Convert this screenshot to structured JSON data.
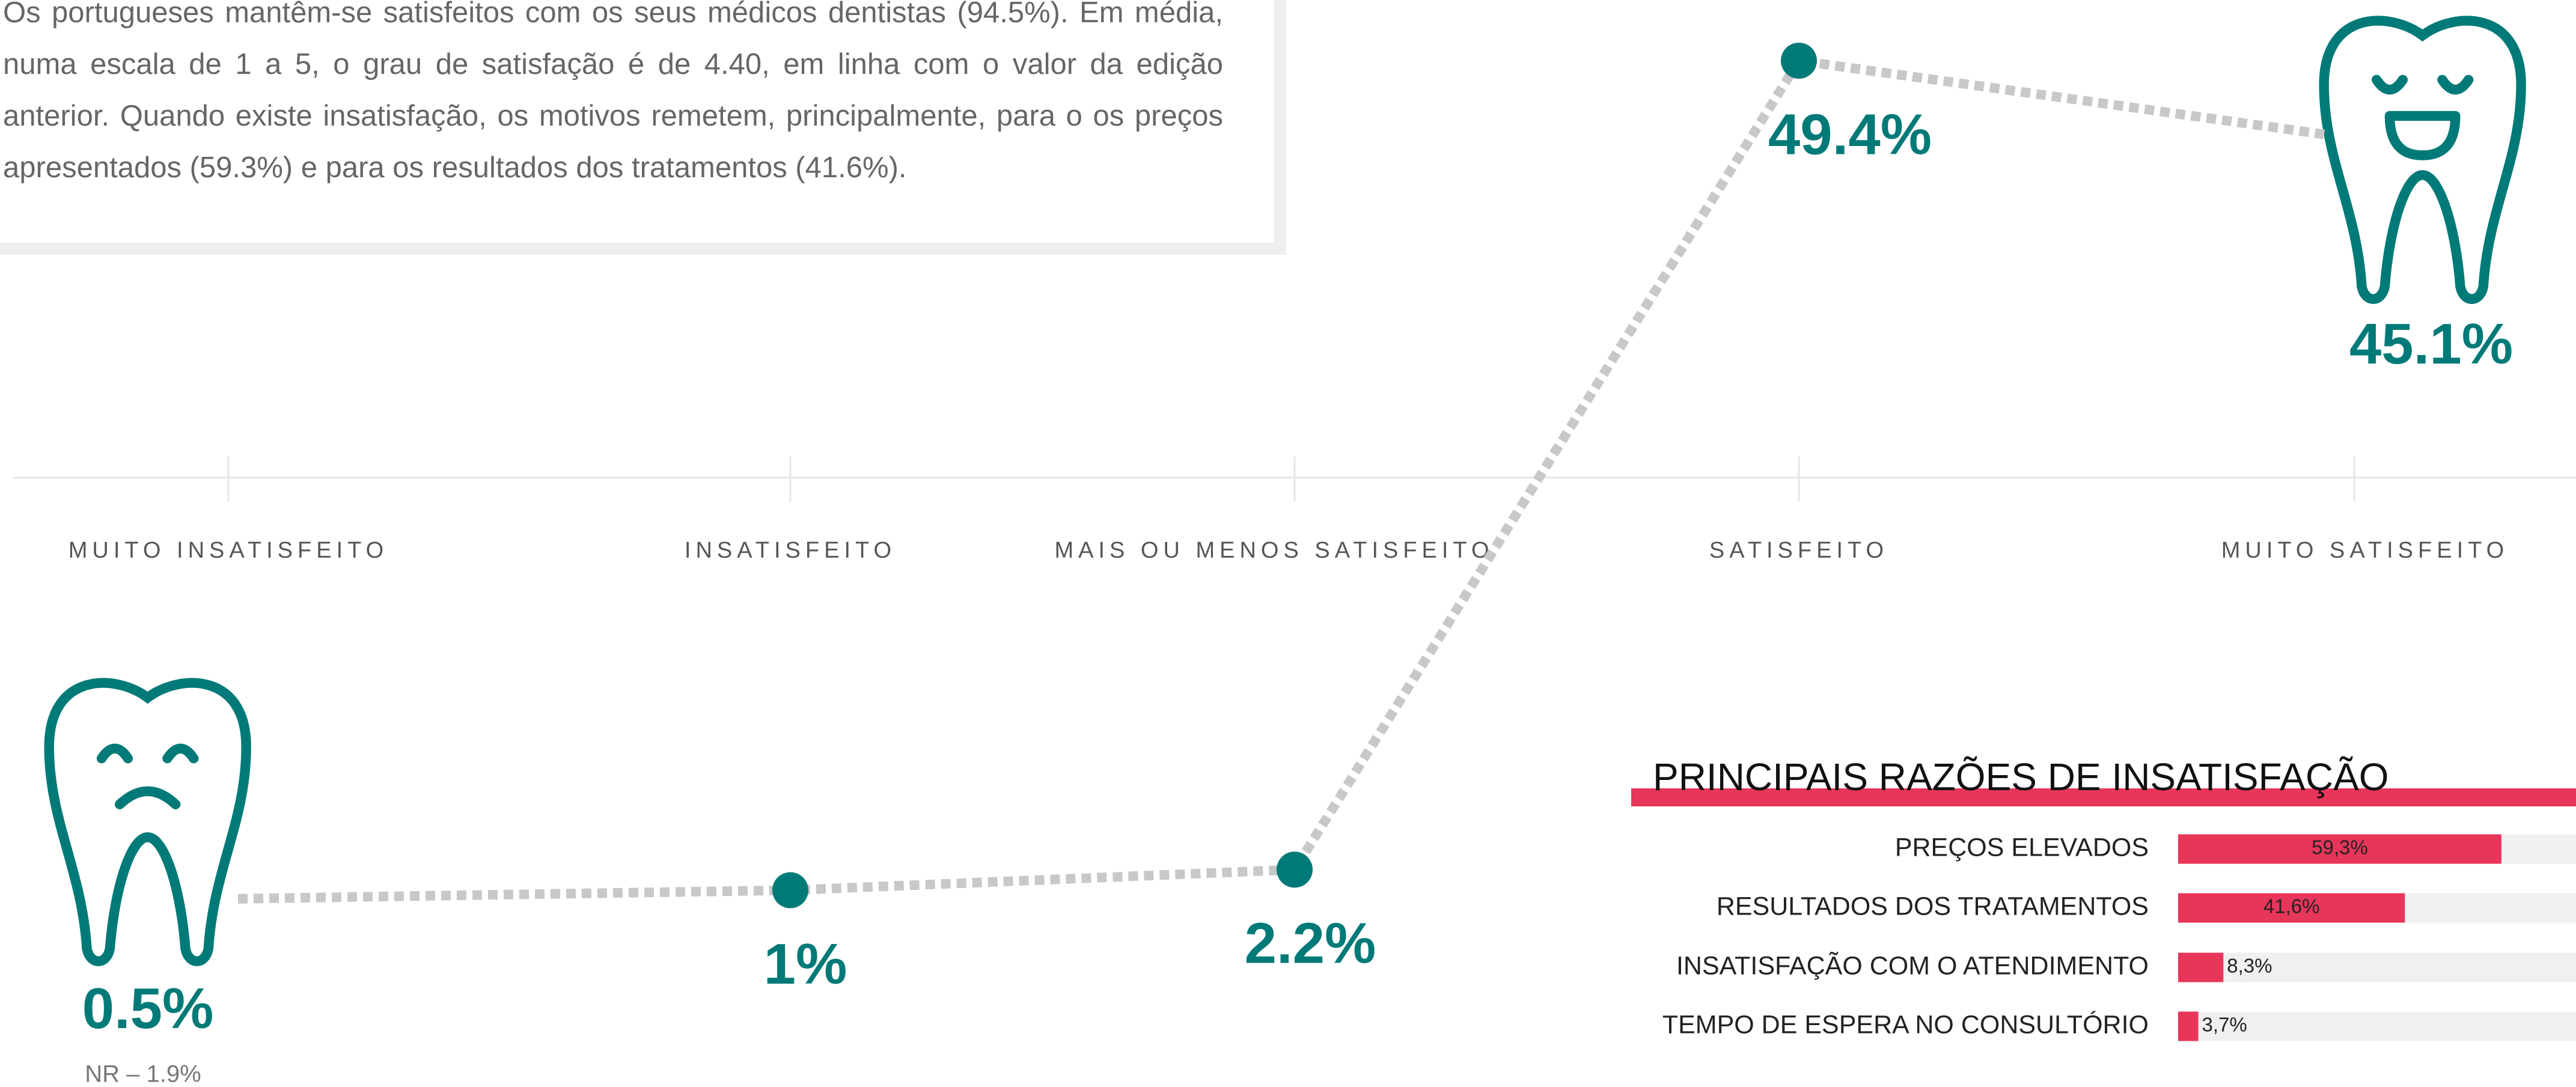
{
  "intro": "Os portugueses mantêm-se satisfeitos com os seus médicos dentistas (94.5%). Em média, numa escala de 1 a 5, o grau de satisfação é de 4.40, em linha com o valor da edição anterior. Quando existe insatisfação, os motivos remetem, principalmente, para o os preços apresentados (59.3%) e para os resultados dos tratamentos (41.6%).",
  "chart_data": [
    {
      "type": "line",
      "categories": [
        "MUITO INSATISFEITO",
        "INSATISFEITO",
        "MAIS OU MENOS SATISFEITO",
        "SATISFEITO",
        "MUITO SATISFEITO"
      ],
      "values": [
        0.5,
        1,
        2.2,
        49.4,
        45.1
      ],
      "value_labels": [
        "0.5%",
        "1%",
        "2.2%",
        "49.4%",
        "45.1%"
      ],
      "color": "#007a78",
      "line_color": "#c8c8c8",
      "note": "NR – 1.9%"
    },
    {
      "type": "hbar",
      "title": "PRINCIPAIS RAZÕES DE INSATISFAÇÃO",
      "categories": [
        "PREÇOS ELEVADOS",
        "RESULTADOS DOS TRATAMENTOS",
        "INSATISFAÇÃO COM O ATENDIMENTO",
        "TEMPO DE ESPERA NO CONSULTÓRIO"
      ],
      "values": [
        59.3,
        41.6,
        8.3,
        3.7
      ],
      "value_labels": [
        "59,3%",
        "41,6%",
        "8,3%",
        "3,7%"
      ],
      "color": "#e8355a"
    }
  ]
}
